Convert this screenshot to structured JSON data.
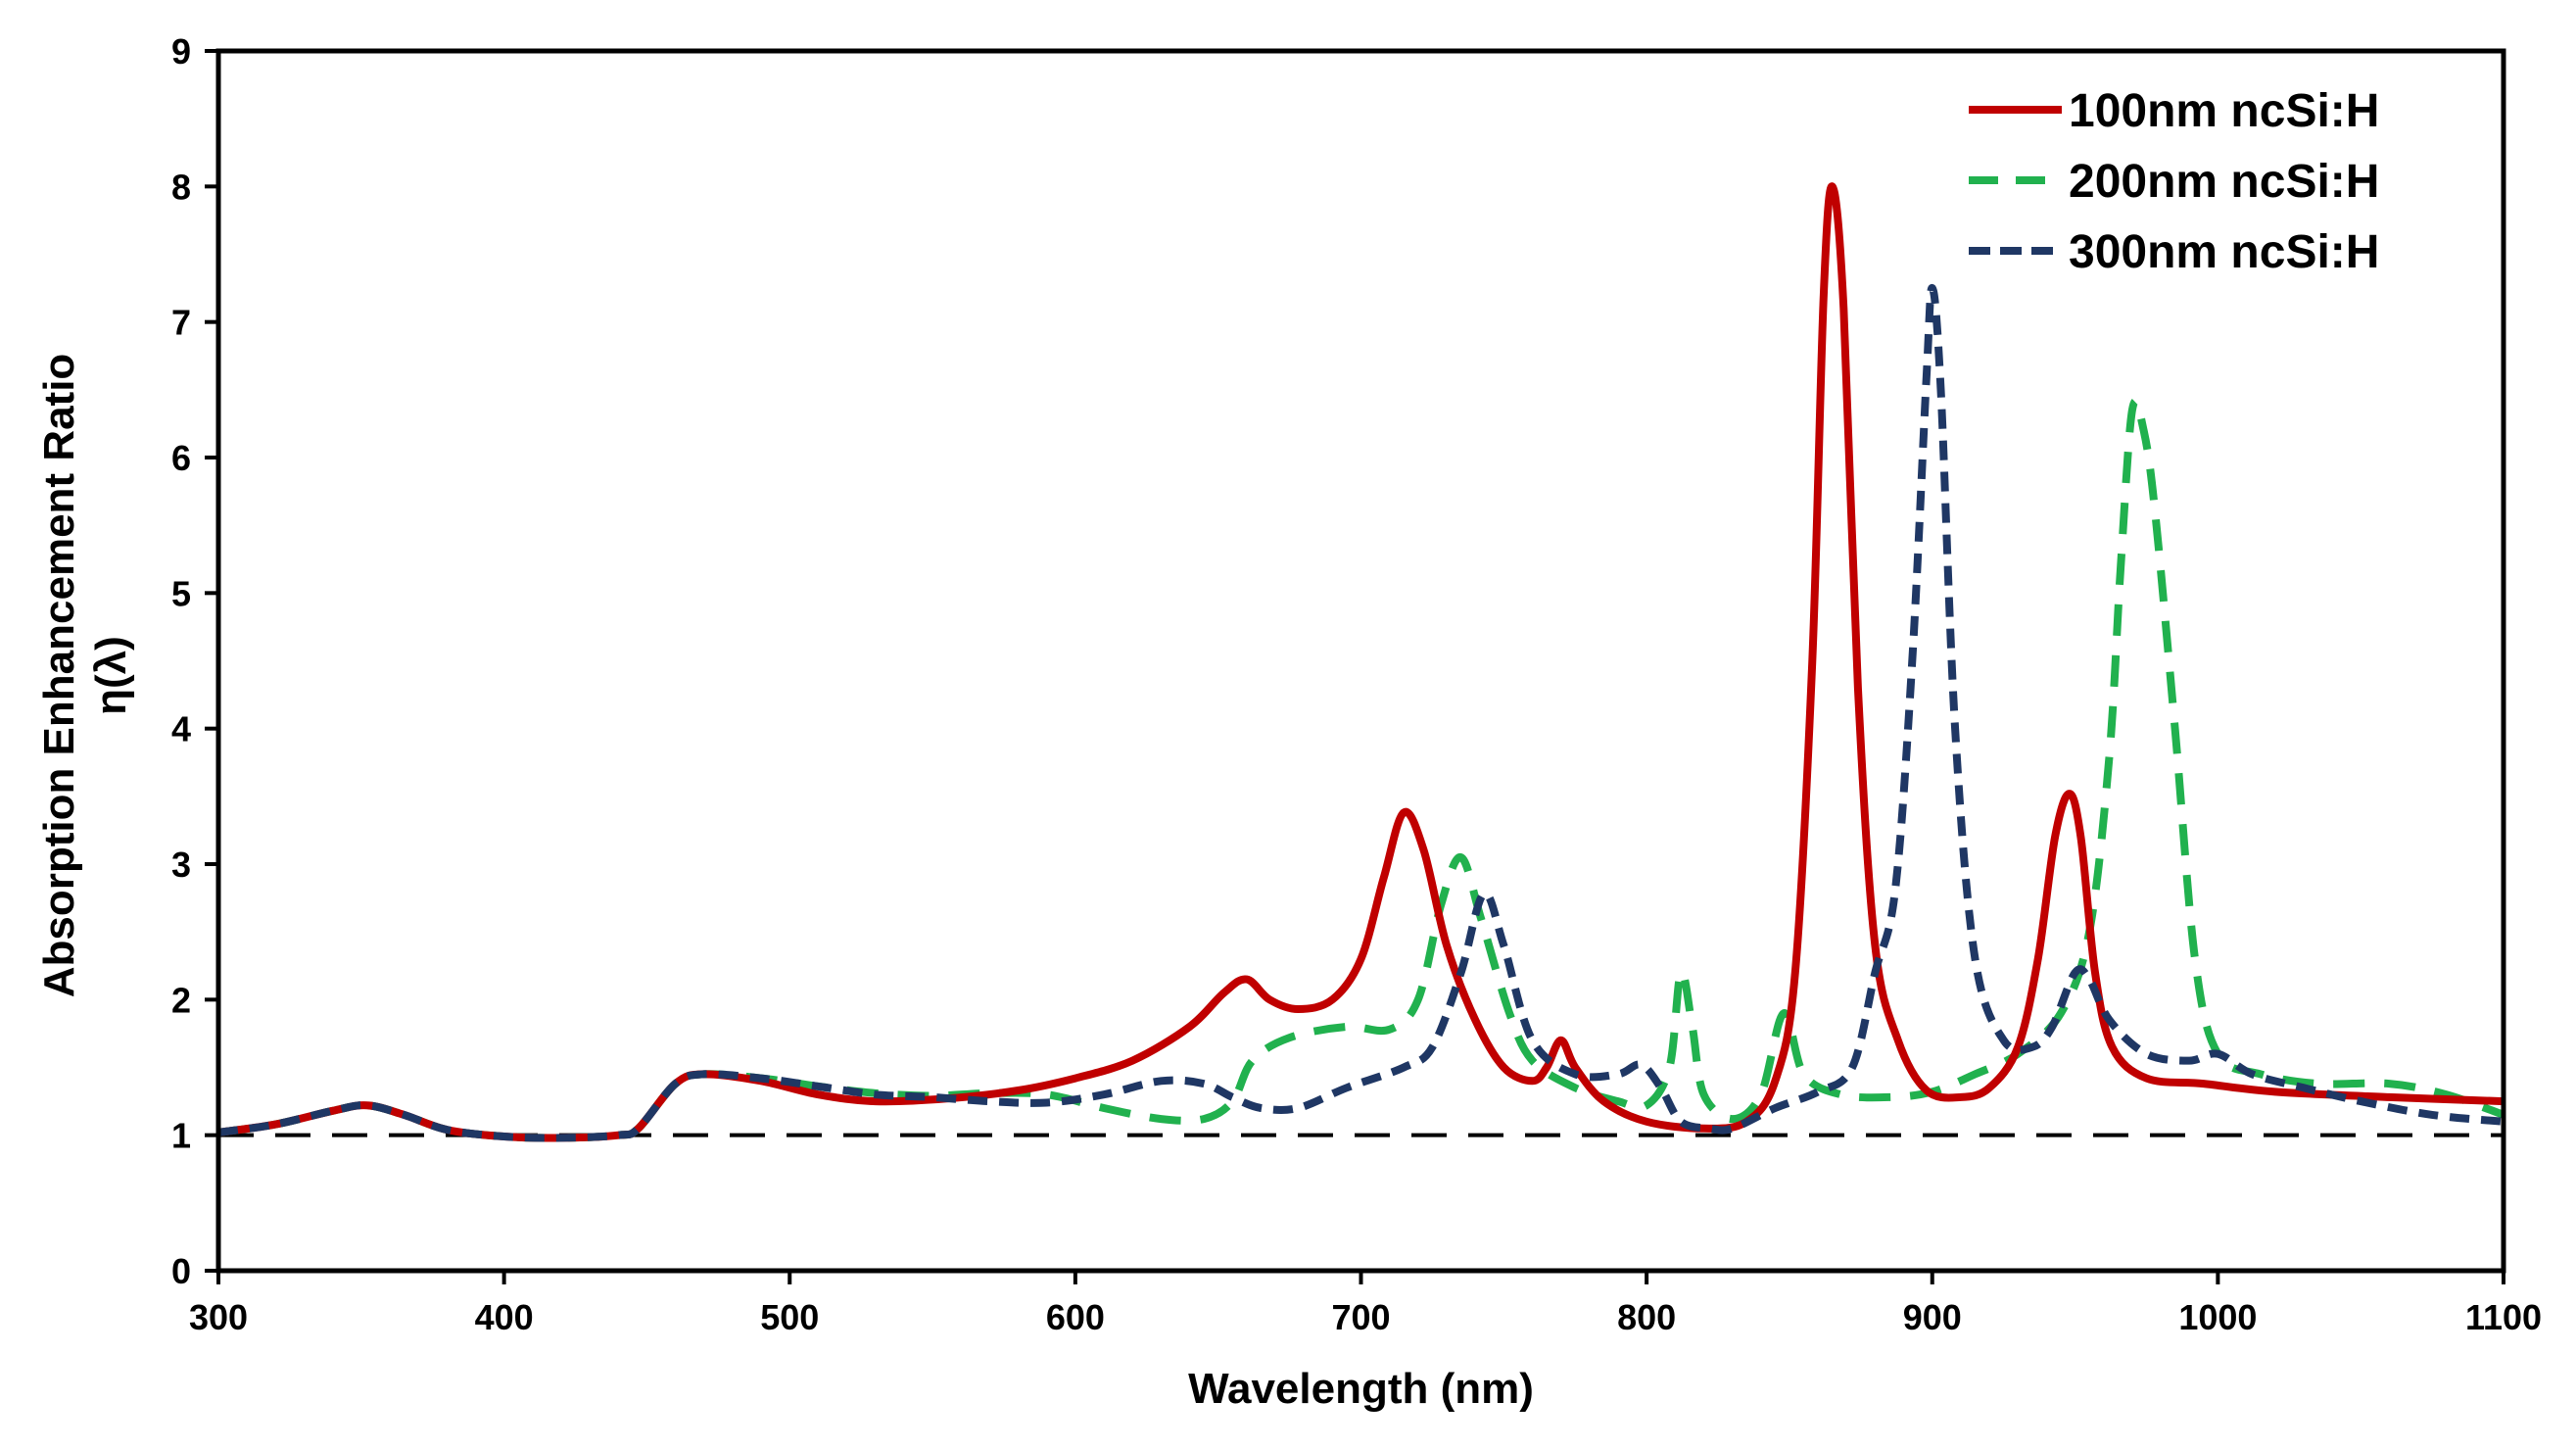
{
  "chart_data": {
    "type": "line",
    "title": "",
    "xlabel": "Wavelength (nm)",
    "ylabel": "Absorption Enhancement Ratio",
    "ylabel2": "η(λ)",
    "xlim": [
      300,
      1100
    ],
    "ylim": [
      0,
      9
    ],
    "xticks": [
      300,
      400,
      500,
      600,
      700,
      800,
      900,
      1000,
      1100
    ],
    "yticks": [
      0,
      1,
      2,
      3,
      4,
      5,
      6,
      7,
      8,
      9
    ],
    "grid": false,
    "legend_position": "top-right",
    "reference_line": {
      "y": 1,
      "style": "dashed",
      "color": "#000000"
    },
    "series": [
      {
        "name": "100nm ncSi:H",
        "color": "#c00000",
        "style": "solid",
        "points": [
          [
            300,
            1.02
          ],
          [
            320,
            1.08
          ],
          [
            340,
            1.18
          ],
          [
            352,
            1.22
          ],
          [
            365,
            1.15
          ],
          [
            380,
            1.04
          ],
          [
            400,
            0.99
          ],
          [
            420,
            0.98
          ],
          [
            440,
            1.0
          ],
          [
            447,
            1.05
          ],
          [
            460,
            1.38
          ],
          [
            470,
            1.45
          ],
          [
            490,
            1.4
          ],
          [
            510,
            1.3
          ],
          [
            530,
            1.25
          ],
          [
            555,
            1.27
          ],
          [
            580,
            1.33
          ],
          [
            600,
            1.42
          ],
          [
            620,
            1.55
          ],
          [
            640,
            1.8
          ],
          [
            652,
            2.05
          ],
          [
            660,
            2.15
          ],
          [
            668,
            2.0
          ],
          [
            678,
            1.93
          ],
          [
            690,
            2.0
          ],
          [
            700,
            2.3
          ],
          [
            708,
            2.9
          ],
          [
            715,
            3.38
          ],
          [
            722,
            3.1
          ],
          [
            730,
            2.4
          ],
          [
            740,
            1.85
          ],
          [
            750,
            1.5
          ],
          [
            760,
            1.4
          ],
          [
            765,
            1.5
          ],
          [
            770,
            1.7
          ],
          [
            775,
            1.5
          ],
          [
            785,
            1.25
          ],
          [
            800,
            1.1
          ],
          [
            820,
            1.05
          ],
          [
            835,
            1.1
          ],
          [
            845,
            1.4
          ],
          [
            852,
            2.2
          ],
          [
            858,
            4.5
          ],
          [
            862,
            7.2
          ],
          [
            865,
            8.0
          ],
          [
            869,
            7.1
          ],
          [
            874,
            4.3
          ],
          [
            880,
            2.4
          ],
          [
            888,
            1.7
          ],
          [
            898,
            1.33
          ],
          [
            910,
            1.28
          ],
          [
            920,
            1.35
          ],
          [
            930,
            1.65
          ],
          [
            937,
            2.3
          ],
          [
            943,
            3.2
          ],
          [
            948,
            3.52
          ],
          [
            952,
            3.2
          ],
          [
            957,
            2.2
          ],
          [
            963,
            1.65
          ],
          [
            975,
            1.42
          ],
          [
            995,
            1.38
          ],
          [
            1020,
            1.32
          ],
          [
            1060,
            1.28
          ],
          [
            1100,
            1.25
          ]
        ]
      },
      {
        "name": "200nm ncSi:H",
        "color": "#21b14e",
        "style": "dashed",
        "points": [
          [
            300,
            1.02
          ],
          [
            320,
            1.08
          ],
          [
            340,
            1.18
          ],
          [
            352,
            1.22
          ],
          [
            365,
            1.15
          ],
          [
            380,
            1.04
          ],
          [
            400,
            0.99
          ],
          [
            420,
            0.98
          ],
          [
            440,
            1.0
          ],
          [
            447,
            1.05
          ],
          [
            460,
            1.38
          ],
          [
            470,
            1.45
          ],
          [
            490,
            1.42
          ],
          [
            510,
            1.36
          ],
          [
            530,
            1.31
          ],
          [
            550,
            1.29
          ],
          [
            570,
            1.31
          ],
          [
            590,
            1.3
          ],
          [
            610,
            1.2
          ],
          [
            630,
            1.12
          ],
          [
            645,
            1.12
          ],
          [
            655,
            1.25
          ],
          [
            662,
            1.55
          ],
          [
            675,
            1.72
          ],
          [
            695,
            1.8
          ],
          [
            710,
            1.78
          ],
          [
            720,
            2.0
          ],
          [
            728,
            2.7
          ],
          [
            735,
            3.05
          ],
          [
            742,
            2.6
          ],
          [
            752,
            1.9
          ],
          [
            760,
            1.55
          ],
          [
            775,
            1.35
          ],
          [
            790,
            1.25
          ],
          [
            800,
            1.22
          ],
          [
            808,
            1.5
          ],
          [
            812,
            2.2
          ],
          [
            816,
            1.8
          ],
          [
            820,
            1.3
          ],
          [
            830,
            1.12
          ],
          [
            840,
            1.3
          ],
          [
            848,
            1.9
          ],
          [
            855,
            1.45
          ],
          [
            868,
            1.3
          ],
          [
            885,
            1.28
          ],
          [
            900,
            1.32
          ],
          [
            915,
            1.45
          ],
          [
            930,
            1.6
          ],
          [
            945,
            1.9
          ],
          [
            955,
            2.5
          ],
          [
            962,
            3.8
          ],
          [
            966,
            5.2
          ],
          [
            970,
            6.35
          ],
          [
            974,
            6.2
          ],
          [
            978,
            5.6
          ],
          [
            985,
            4.0
          ],
          [
            992,
            2.3
          ],
          [
            1000,
            1.6
          ],
          [
            1015,
            1.45
          ],
          [
            1035,
            1.38
          ],
          [
            1060,
            1.38
          ],
          [
            1080,
            1.3
          ],
          [
            1100,
            1.15
          ]
        ]
      },
      {
        "name": "300nm ncSi:H",
        "color": "#1f3764",
        "style": "dashdot",
        "points": [
          [
            300,
            1.02
          ],
          [
            320,
            1.08
          ],
          [
            340,
            1.18
          ],
          [
            352,
            1.22
          ],
          [
            365,
            1.15
          ],
          [
            380,
            1.04
          ],
          [
            400,
            0.99
          ],
          [
            420,
            0.98
          ],
          [
            440,
            1.0
          ],
          [
            447,
            1.05
          ],
          [
            460,
            1.38
          ],
          [
            470,
            1.45
          ],
          [
            490,
            1.42
          ],
          [
            510,
            1.36
          ],
          [
            530,
            1.3
          ],
          [
            550,
            1.28
          ],
          [
            570,
            1.25
          ],
          [
            590,
            1.24
          ],
          [
            610,
            1.3
          ],
          [
            630,
            1.4
          ],
          [
            645,
            1.38
          ],
          [
            655,
            1.28
          ],
          [
            665,
            1.2
          ],
          [
            678,
            1.2
          ],
          [
            695,
            1.35
          ],
          [
            715,
            1.5
          ],
          [
            725,
            1.65
          ],
          [
            735,
            2.2
          ],
          [
            743,
            2.78
          ],
          [
            750,
            2.4
          ],
          [
            760,
            1.7
          ],
          [
            775,
            1.45
          ],
          [
            790,
            1.45
          ],
          [
            798,
            1.52
          ],
          [
            805,
            1.35
          ],
          [
            812,
            1.1
          ],
          [
            822,
            1.05
          ],
          [
            830,
            1.05
          ],
          [
            845,
            1.2
          ],
          [
            860,
            1.32
          ],
          [
            872,
            1.5
          ],
          [
            880,
            2.2
          ],
          [
            887,
            2.8
          ],
          [
            893,
            4.5
          ],
          [
            898,
            6.6
          ],
          [
            900,
            7.25
          ],
          [
            903,
            6.5
          ],
          [
            908,
            4.0
          ],
          [
            915,
            2.3
          ],
          [
            925,
            1.7
          ],
          [
            935,
            1.65
          ],
          [
            942,
            1.8
          ],
          [
            950,
            2.2
          ],
          [
            955,
            2.15
          ],
          [
            962,
            1.85
          ],
          [
            975,
            1.6
          ],
          [
            990,
            1.55
          ],
          [
            1000,
            1.6
          ],
          [
            1012,
            1.45
          ],
          [
            1030,
            1.35
          ],
          [
            1050,
            1.25
          ],
          [
            1075,
            1.15
          ],
          [
            1100,
            1.1
          ]
        ]
      }
    ]
  }
}
